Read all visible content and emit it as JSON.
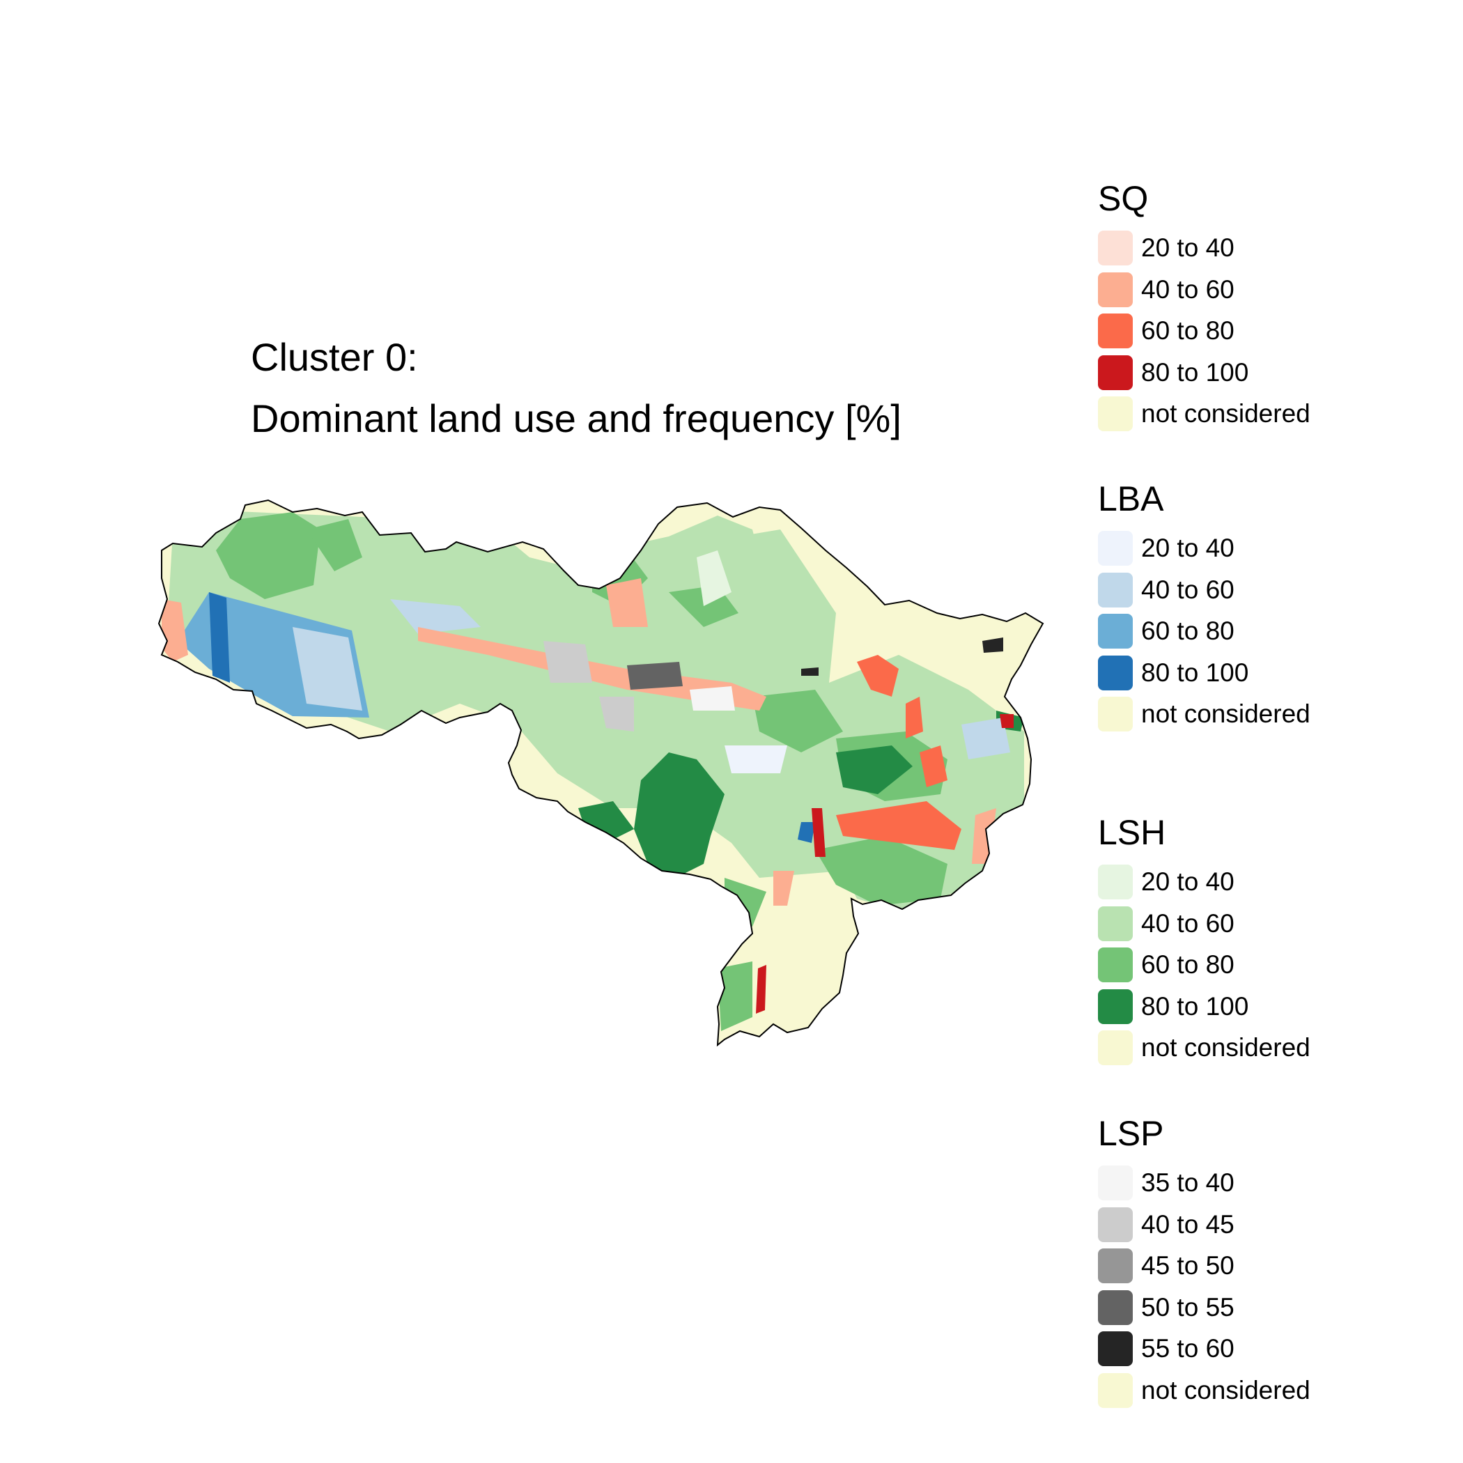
{
  "title": {
    "line1": "Cluster 0:",
    "line2": "Dominant land use and frequency [%]"
  },
  "colors": {
    "not_considered": "#f8f8d2",
    "sq": [
      "#fde0d6",
      "#fcae91",
      "#fb6a4a",
      "#cb181d"
    ],
    "lba": [
      "#eef3fc",
      "#c0d8ea",
      "#6baed6",
      "#2171b5"
    ],
    "lsh": [
      "#e6f5e1",
      "#b9e2b1",
      "#74c476",
      "#238b45"
    ],
    "lsp": [
      "#f5f5f5",
      "#cccccc",
      "#969696",
      "#636363",
      "#252525"
    ],
    "outline": "#000000"
  },
  "legends": [
    {
      "title": "SQ",
      "items": [
        {
          "label": "20 to 40",
          "color": "#fde0d6"
        },
        {
          "label": "40 to 60",
          "color": "#fcae91"
        },
        {
          "label": "60 to 80",
          "color": "#fb6a4a"
        },
        {
          "label": "80 to 100",
          "color": "#cb181d"
        },
        {
          "label": "not considered",
          "color": "#f8f8d2"
        }
      ]
    },
    {
      "title": "LBA",
      "items": [
        {
          "label": "20 to 40",
          "color": "#eef3fc"
        },
        {
          "label": "40 to 60",
          "color": "#c0d8ea"
        },
        {
          "label": "60 to 80",
          "color": "#6baed6"
        },
        {
          "label": "80 to 100",
          "color": "#2171b5"
        },
        {
          "label": "not considered",
          "color": "#f8f8d2"
        }
      ]
    },
    {
      "title": "LSH",
      "items": [
        {
          "label": "20 to 40",
          "color": "#e6f5e1"
        },
        {
          "label": "40 to 60",
          "color": "#b9e2b1"
        },
        {
          "label": "60 to 80",
          "color": "#74c476"
        },
        {
          "label": "80 to 100",
          "color": "#238b45"
        },
        {
          "label": "not considered",
          "color": "#f8f8d2"
        }
      ]
    },
    {
      "title": "LSP",
      "items": [
        {
          "label": "35 to 40",
          "color": "#f5f5f5"
        },
        {
          "label": "40 to 45",
          "color": "#cccccc"
        },
        {
          "label": "45 to 50",
          "color": "#969696"
        },
        {
          "label": "50 to 55",
          "color": "#636363"
        },
        {
          "label": "55 to 60",
          "color": "#252525"
        },
        {
          "label": "not considered",
          "color": "#f8f8d2"
        }
      ]
    }
  ]
}
